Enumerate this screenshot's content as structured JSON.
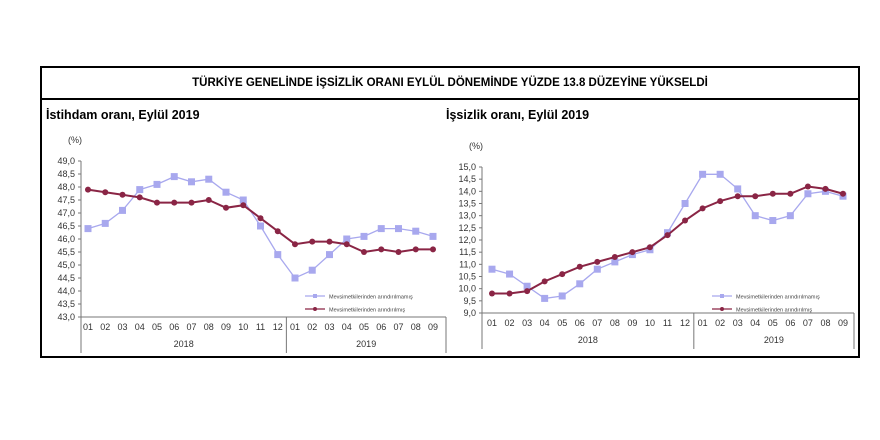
{
  "header": {
    "title": "TÜRKİYE GENELİNDE İŞSİZLİK ORANI EYLÜL DÖNEMİNDE YÜZDE 13.8 DÜZEYİNE YÜKSELDİ"
  },
  "colors": {
    "unadjusted": "#a8a8ee",
    "adjusted": "#8a2545"
  },
  "chart_data": [
    {
      "type": "line",
      "title": "İstihdam oranı, Eylül 2019",
      "ylabel": "(%)",
      "ylim": [
        43.0,
        49.0
      ],
      "ystep": 0.5,
      "categories": [
        "01",
        "02",
        "03",
        "04",
        "05",
        "06",
        "07",
        "08",
        "09",
        "10",
        "11",
        "12",
        "01",
        "02",
        "03",
        "04",
        "05",
        "06",
        "07",
        "08",
        "09"
      ],
      "years": [
        {
          "label": "2018",
          "count": 12
        },
        {
          "label": "2019",
          "count": 9
        }
      ],
      "series": [
        {
          "name": "Mevsimetkilerinden arındırılmamış",
          "values": [
            46.4,
            46.6,
            47.1,
            47.9,
            48.1,
            48.4,
            48.2,
            48.3,
            47.8,
            47.5,
            46.5,
            45.4,
            44.5,
            44.8,
            45.4,
            46.0,
            46.1,
            46.4,
            46.4,
            46.3,
            46.1
          ]
        },
        {
          "name": "Mevsimetkilerinden arındırılmış",
          "values": [
            47.9,
            47.8,
            47.7,
            47.6,
            47.4,
            47.4,
            47.4,
            47.5,
            47.2,
            47.3,
            46.8,
            46.3,
            45.8,
            45.9,
            45.9,
            45.8,
            45.5,
            45.6,
            45.5,
            45.6,
            45.6
          ]
        }
      ],
      "legend": "bottom-right"
    },
    {
      "type": "line",
      "title": "İşsizlik oranı, Eylül 2019",
      "ylabel": "(%)",
      "ylim": [
        9.0,
        15.0
      ],
      "ystep": 0.5,
      "categories": [
        "01",
        "02",
        "03",
        "04",
        "05",
        "06",
        "07",
        "08",
        "09",
        "10",
        "11",
        "12",
        "01",
        "02",
        "03",
        "04",
        "05",
        "06",
        "07",
        "08",
        "09"
      ],
      "years": [
        {
          "label": "2018",
          "count": 12
        },
        {
          "label": "2019",
          "count": 9
        }
      ],
      "series": [
        {
          "name": "Mevsimetkilerinden arındırılmamış",
          "values": [
            10.8,
            10.6,
            10.1,
            9.6,
            9.7,
            10.2,
            10.8,
            11.1,
            11.4,
            11.6,
            12.3,
            13.5,
            14.7,
            14.7,
            14.1,
            13.0,
            12.8,
            13.0,
            13.9,
            14.0,
            13.8
          ]
        },
        {
          "name": "Mevsimetkilerinden arındırılmış",
          "values": [
            9.8,
            9.8,
            9.9,
            10.3,
            10.6,
            10.9,
            11.1,
            11.3,
            11.5,
            11.7,
            12.2,
            12.8,
            13.3,
            13.6,
            13.8,
            13.8,
            13.9,
            13.9,
            14.2,
            14.1,
            13.9
          ]
        }
      ],
      "legend": "bottom-right"
    }
  ]
}
